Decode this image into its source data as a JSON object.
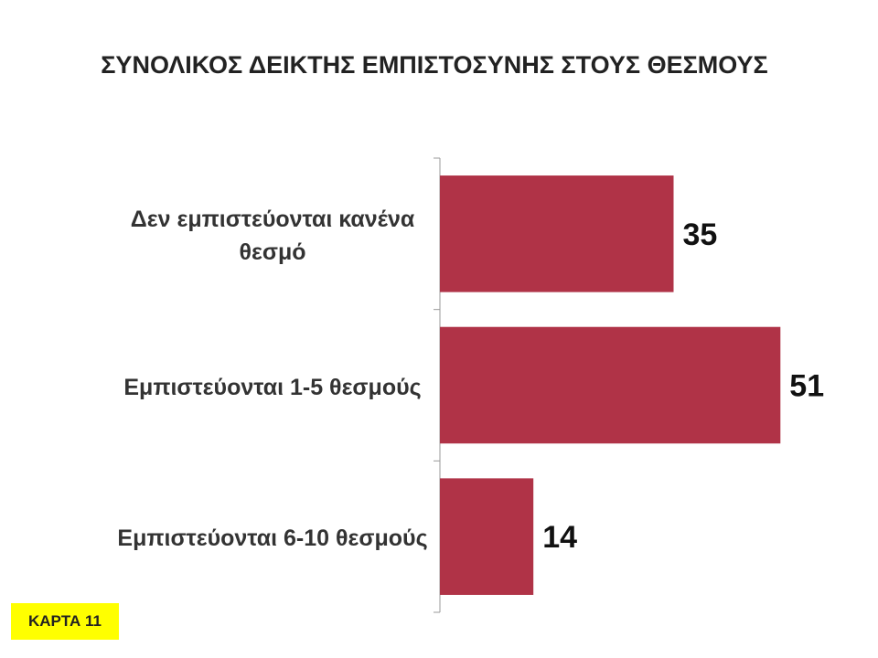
{
  "chart_data": {
    "type": "barh",
    "title": "ΣΥΝΟΛΙΚΟΣ ΔΕΙΚΤΗΣ ΕΜΠΙΣΤΟΣΥΝΗΣ ΣΤΟΥΣ ΘΕΣΜΟΥΣ",
    "categories": [
      "Δεν εμπιστεύονται κανένα θεσμό",
      "Εμπιστεύονται 1-5 θεσμούς",
      "Εμπιστεύονται 6-10 θεσμούς"
    ],
    "values": [
      35,
      51,
      14
    ],
    "color": "#b03347",
    "xlim": [
      0,
      60
    ],
    "annotation": "ΚΑΡΤΑ 11"
  }
}
